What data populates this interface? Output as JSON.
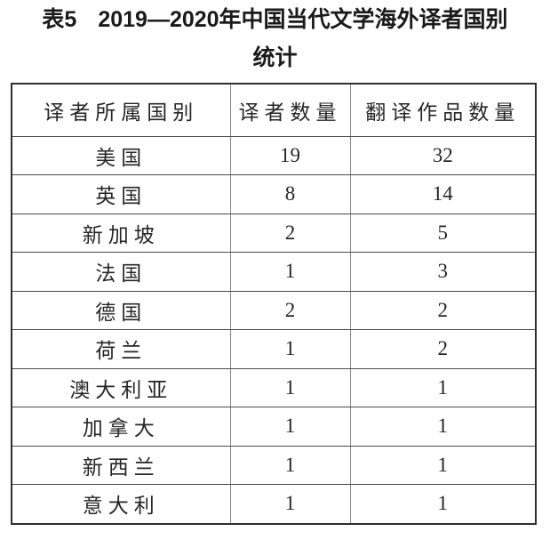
{
  "title": {
    "label": "表5",
    "line1": "2019—2020年中国当代文学海外译者国别",
    "line2": "统计"
  },
  "table": {
    "headers": [
      "译者所属国别",
      "译者数量",
      "翻译作品数量"
    ],
    "rows": [
      {
        "country": "美国",
        "translators": "19",
        "works": "32"
      },
      {
        "country": "英国",
        "translators": "8",
        "works": "14"
      },
      {
        "country": "新加坡",
        "translators": "2",
        "works": "5"
      },
      {
        "country": "法国",
        "translators": "1",
        "works": "3"
      },
      {
        "country": "德国",
        "translators": "2",
        "works": "2"
      },
      {
        "country": "荷兰",
        "translators": "1",
        "works": "2"
      },
      {
        "country": "澳大利亚",
        "translators": "1",
        "works": "1"
      },
      {
        "country": "加拿大",
        "translators": "1",
        "works": "1"
      },
      {
        "country": "新西兰",
        "translators": "1",
        "works": "1"
      },
      {
        "country": "意大利",
        "translators": "1",
        "works": "1"
      }
    ]
  }
}
